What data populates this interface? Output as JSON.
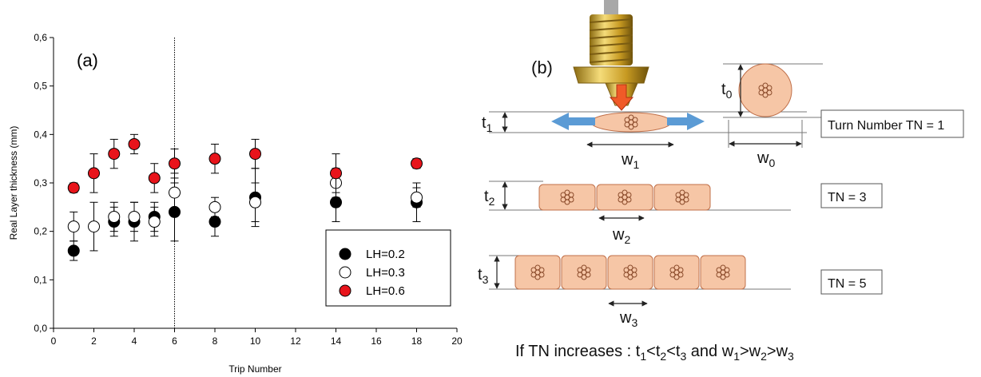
{
  "chart_data": {
    "type": "scatter",
    "annotation": "(a)",
    "xlabel": "Trip Number",
    "ylabel": "Real Layer thickness (mm)",
    "xlim": [
      0,
      20
    ],
    "xticks": [
      0,
      2,
      4,
      6,
      8,
      10,
      12,
      14,
      16,
      18,
      20
    ],
    "ylim": [
      0,
      0.6
    ],
    "yticks": [
      {
        "value": 0,
        "label": "0,0"
      },
      {
        "value": 0.1,
        "label": "0,1"
      },
      {
        "value": 0.2,
        "label": "0,2"
      },
      {
        "value": 0.3,
        "label": "0,3"
      },
      {
        "value": 0.4,
        "label": "0,4"
      },
      {
        "value": 0.5,
        "label": "0,5"
      },
      {
        "value": 0.6,
        "label": "0,6"
      }
    ],
    "vline": 6,
    "legend": "lower right",
    "series": [
      {
        "name": "LH=0.2",
        "color": "#000000",
        "x": [
          1,
          3,
          4,
          5,
          6,
          8,
          10,
          14,
          18
        ],
        "values": [
          0.16,
          0.22,
          0.22,
          0.23,
          0.24,
          0.22,
          0.27,
          0.26,
          0.26
        ],
        "errors": [
          0.02,
          0.03,
          0.04,
          0.03,
          0.06,
          0.03,
          0.06,
          0.04,
          0.04
        ]
      },
      {
        "name": "LH=0.3",
        "color": "#ffffff",
        "x": [
          1,
          2,
          3,
          4,
          5,
          6,
          8,
          10,
          14,
          18
        ],
        "values": [
          0.21,
          0.21,
          0.23,
          0.23,
          0.22,
          0.28,
          0.25,
          0.26,
          0.3,
          0.27
        ],
        "errors": [
          0.03,
          0.05,
          0.03,
          0.03,
          0.03,
          0.04,
          0.02,
          0.04,
          0.03,
          0.02
        ]
      },
      {
        "name": "LH=0.6",
        "color": "#e8141b",
        "x": [
          1,
          2,
          3,
          4,
          5,
          6,
          8,
          10,
          14,
          18
        ],
        "values": [
          0.29,
          0.32,
          0.36,
          0.38,
          0.31,
          0.34,
          0.35,
          0.36,
          0.32,
          0.34
        ],
        "errors": [
          0.01,
          0.04,
          0.03,
          0.02,
          0.03,
          0.03,
          0.03,
          0.03,
          0.04,
          0.01
        ]
      }
    ]
  },
  "diagram": {
    "label": "(b)",
    "dims": [
      [
        "t",
        "1"
      ],
      [
        "w",
        "1"
      ],
      [
        "t",
        "0"
      ],
      [
        "w",
        "0"
      ],
      [
        "t",
        "2"
      ],
      [
        "w",
        "2"
      ],
      [
        "t",
        "3"
      ],
      [
        "w",
        "3"
      ]
    ],
    "boxes": [
      "Turn Number TN = 1",
      "TN = 3",
      "TN = 5"
    ],
    "caption": [
      "If TN increases : t",
      "1",
      "<t",
      "2",
      "<t",
      "3",
      " and w",
      "1",
      ">w",
      "2",
      ">w",
      "3"
    ]
  }
}
